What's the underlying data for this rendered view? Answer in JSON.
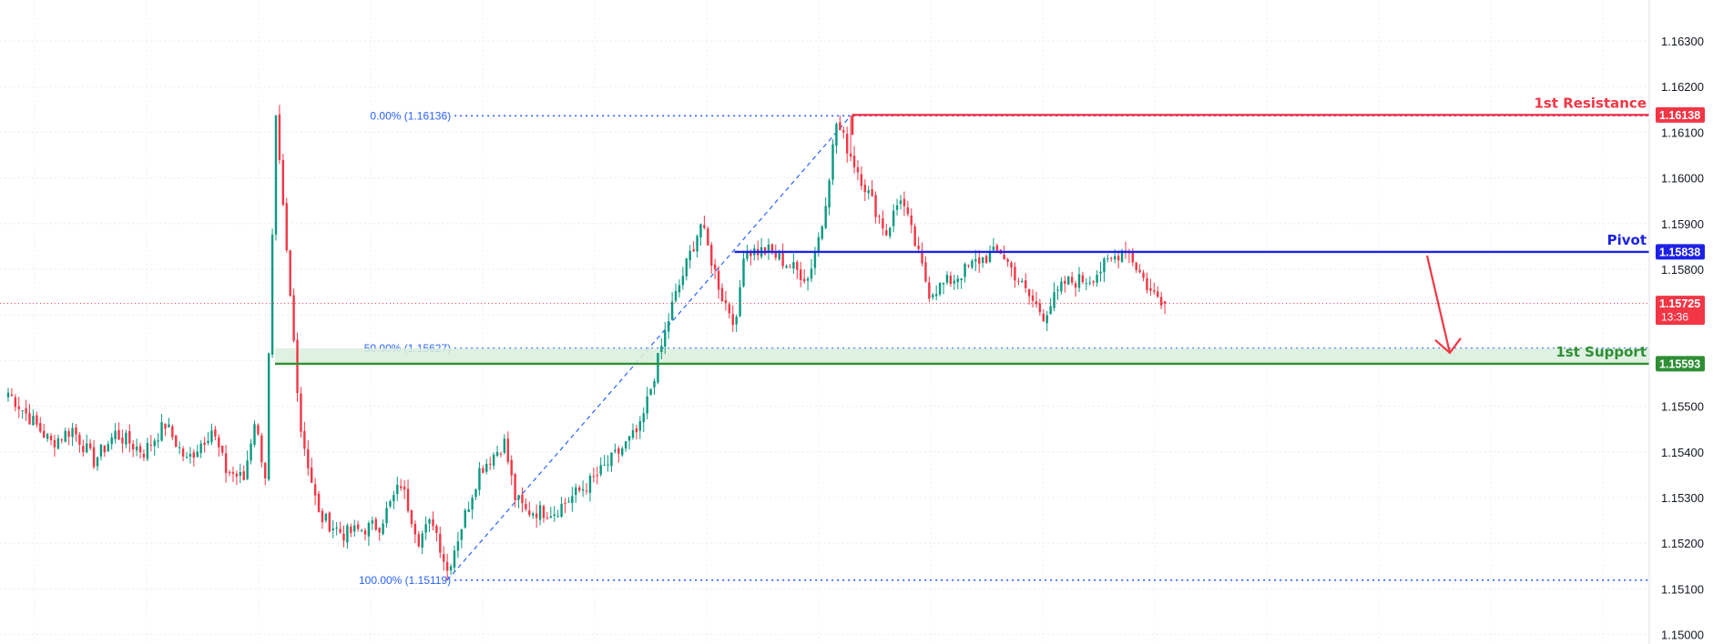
{
  "chart_data": {
    "type": "candlestick",
    "y_axis": {
      "range": [
        1.15,
        1.1635
      ],
      "ticks": [
        "1.16300",
        "1.16200",
        "1.16100",
        "1.16000",
        "1.15900",
        "1.15800",
        "1.15700",
        "1.15600",
        "1.15500",
        "1.15400",
        "1.15300",
        "1.15200",
        "1.15100",
        "1.15000"
      ],
      "position": "right"
    },
    "grid": true,
    "fibonacci": {
      "color": "#2962ff",
      "levels": [
        {
          "label": "0.00% (1.16136)",
          "value": 1.16136
        },
        {
          "label": "50.00% (1.15627)",
          "value": 1.15627
        },
        {
          "label": "100.00% (1.15119)",
          "value": 1.15119
        }
      ]
    },
    "levels": [
      {
        "name": "1st Resistance",
        "value": 1.16138,
        "badge": "1.16138",
        "color": "#f23645"
      },
      {
        "name": "Pivot",
        "value": 1.15838,
        "badge": "1.15838",
        "color": "#1e22e6"
      },
      {
        "name": "1st Support",
        "value": 1.15593,
        "badge": "1.15593",
        "color": "#2f8f35",
        "zone_top": 1.15627
      }
    ],
    "current_price": {
      "value": 1.15725,
      "badge": "1.15725",
      "countdown": "13:36",
      "color": "#f23645"
    },
    "projection_arrow": {
      "from": 1.15838,
      "to": 1.15627,
      "color": "#f23645",
      "direction": "down"
    },
    "candle_colors": {
      "up": "#089981",
      "down": "#f23645"
    },
    "series": [
      {
        "name": "",
        "anchors": [
          [
            0,
            1.1553
          ],
          [
            12,
            1.1542
          ],
          [
            18,
            1.1545
          ],
          [
            24,
            1.1538
          ],
          [
            30,
            1.1544
          ],
          [
            38,
            1.154
          ],
          [
            44,
            1.1546
          ],
          [
            50,
            1.1538
          ],
          [
            57,
            1.1545
          ],
          [
            61,
            1.1536
          ],
          [
            66,
            1.1534
          ],
          [
            69,
            1.1547
          ],
          [
            72,
            1.1535
          ],
          [
            75,
            1.1612
          ],
          [
            82,
            1.1545
          ],
          [
            87,
            1.1526
          ],
          [
            94,
            1.1522
          ],
          [
            104,
            1.1524
          ],
          [
            110,
            1.1533
          ],
          [
            115,
            1.1521
          ],
          [
            119,
            1.1525
          ],
          [
            123,
            1.1514
          ],
          [
            132,
            1.1536
          ],
          [
            139,
            1.1542
          ],
          [
            142,
            1.153
          ],
          [
            145,
            1.1527
          ],
          [
            153,
            1.1527
          ],
          [
            164,
            1.1534
          ],
          [
            177,
            1.1545
          ],
          [
            186,
            1.1572
          ],
          [
            194,
            1.159
          ],
          [
            200,
            1.1574
          ],
          [
            204,
            1.1568
          ],
          [
            206,
            1.1584
          ],
          [
            213,
            1.1584
          ],
          [
            224,
            1.1578
          ],
          [
            228,
            1.159
          ],
          [
            232,
            1.1612
          ],
          [
            236,
            1.1605
          ],
          [
            246,
            1.1588
          ],
          [
            250,
            1.1596
          ],
          [
            258,
            1.1575
          ],
          [
            265,
            1.1578
          ],
          [
            272,
            1.1582
          ],
          [
            278,
            1.1584
          ],
          [
            285,
            1.1575
          ],
          [
            290,
            1.157
          ],
          [
            296,
            1.1577
          ],
          [
            303,
            1.1578
          ],
          [
            309,
            1.1582
          ],
          [
            313,
            1.1585
          ],
          [
            320,
            1.1575
          ],
          [
            324,
            1.1573
          ]
        ]
      }
    ]
  }
}
